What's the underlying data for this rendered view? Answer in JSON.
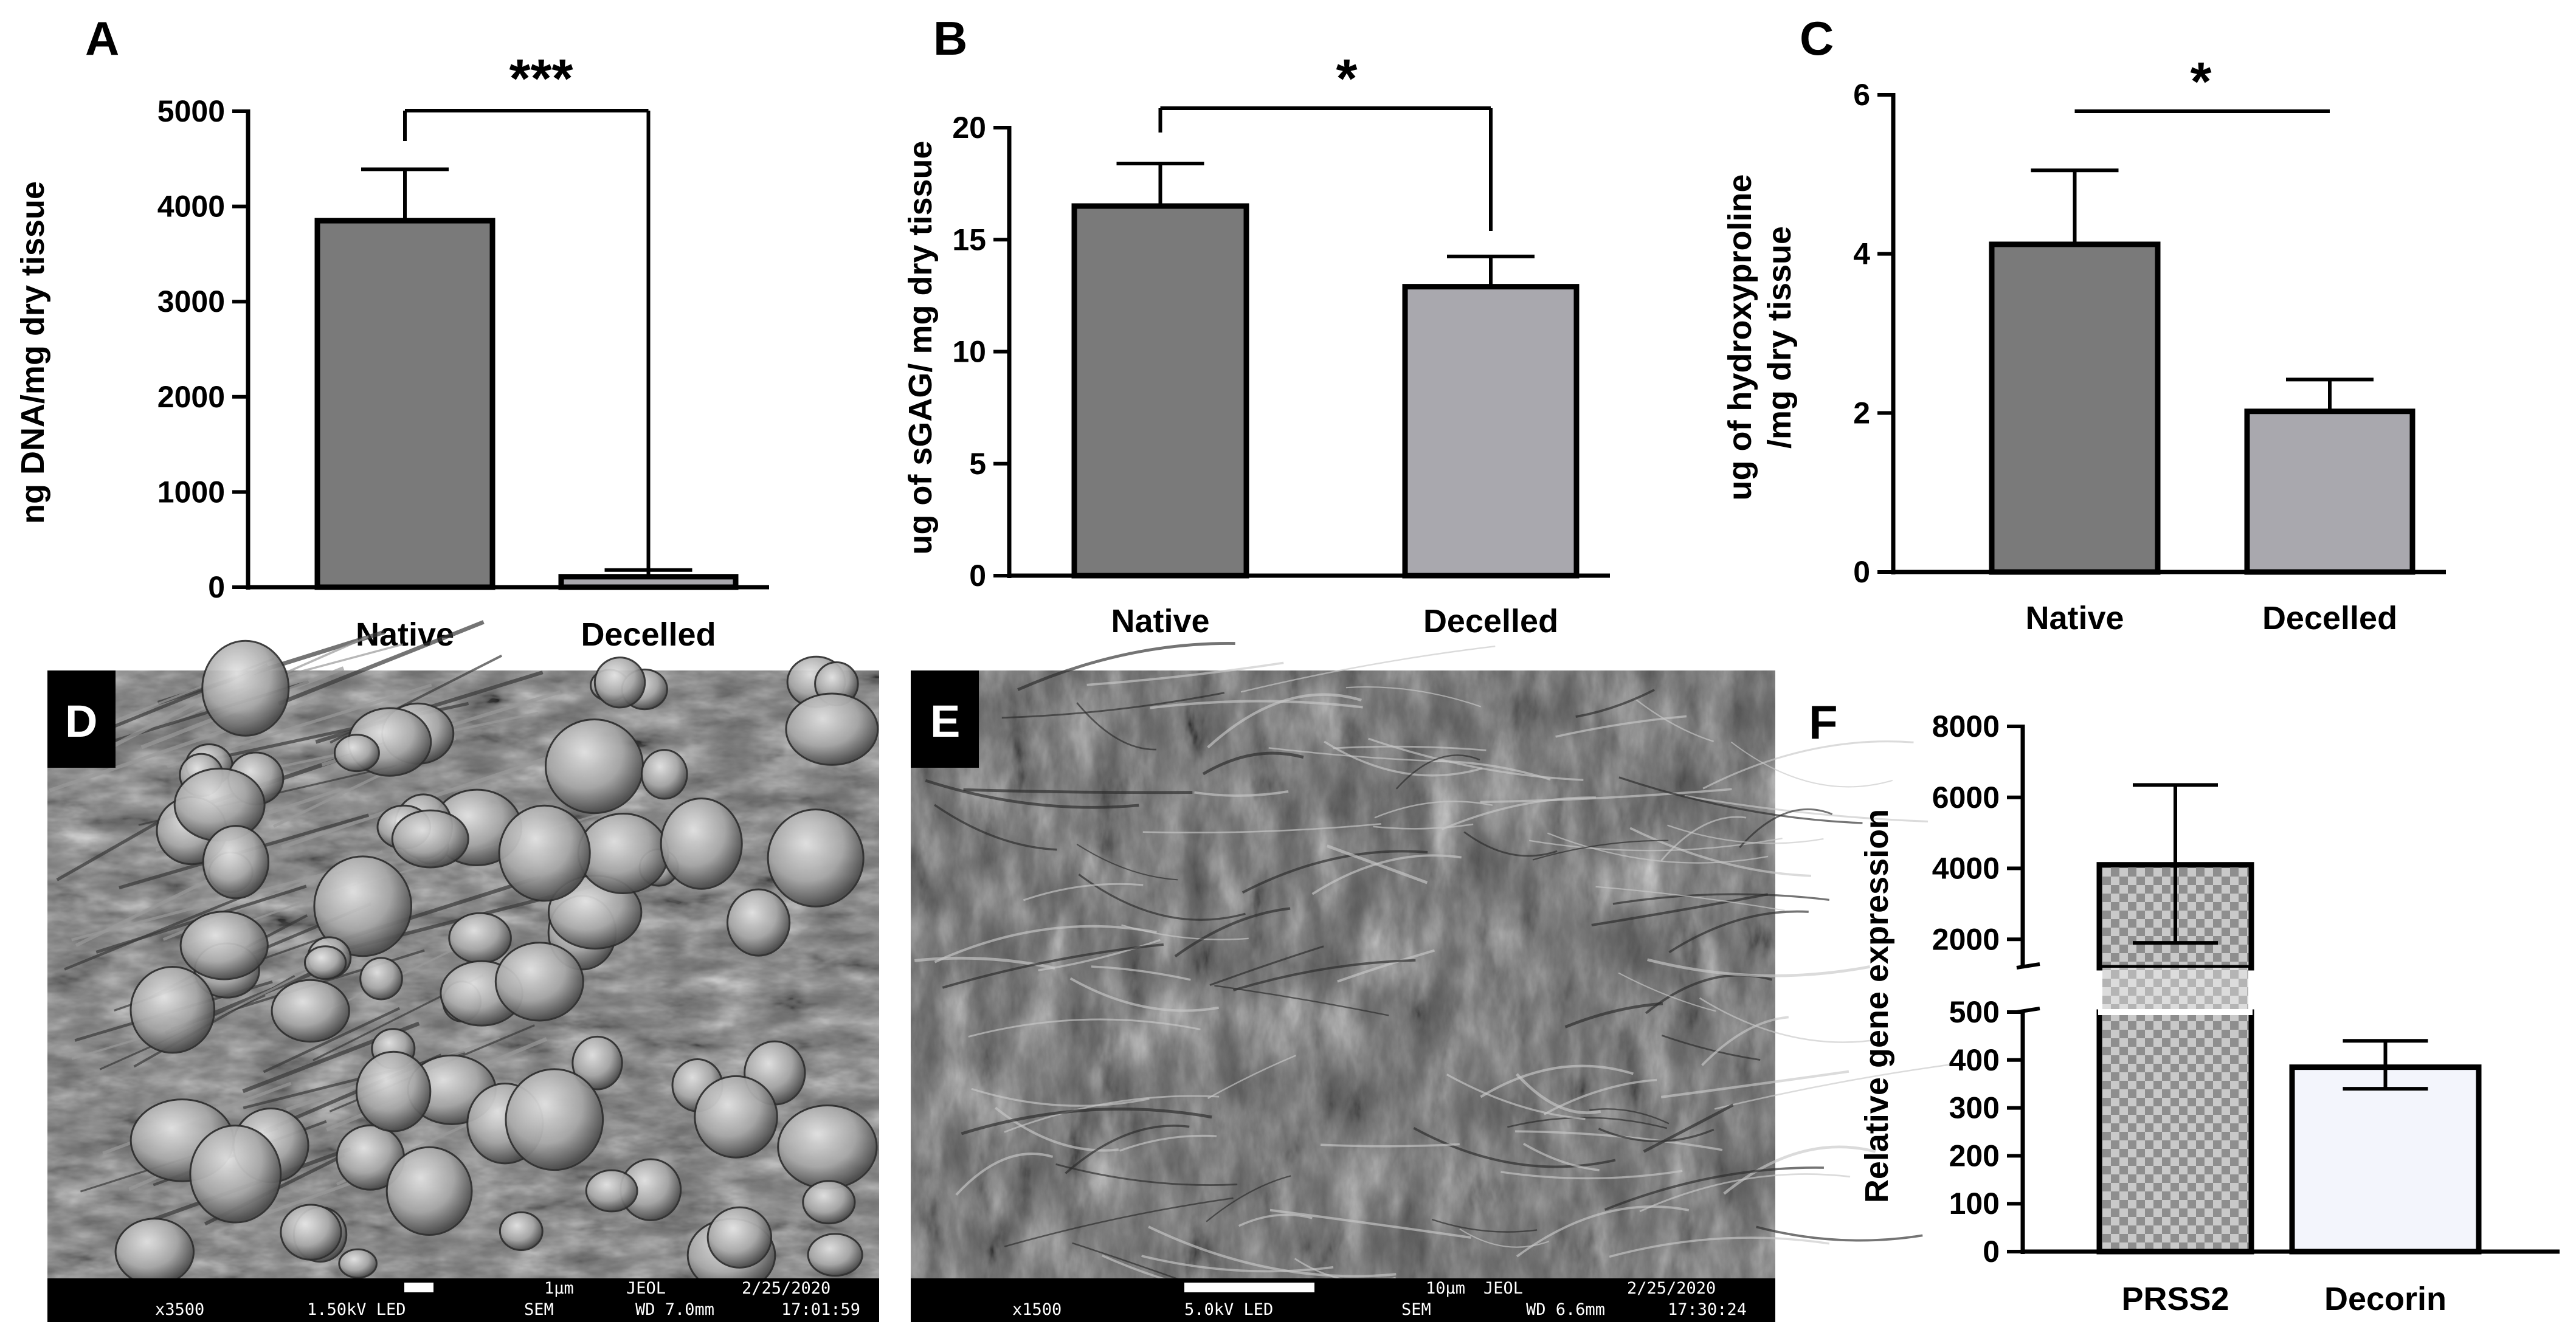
{
  "colors": {
    "native": "#7a7a7a",
    "decelled": "#a9a8ae",
    "prss2_check_light": "#c9c9c9",
    "prss2_check_dark": "#8e8e8e",
    "decorin": "#f3f5fc",
    "sem_bg": "#7c7c7c"
  },
  "chart_data": [
    {
      "id": "A",
      "panel_label": "A",
      "type": "bar",
      "categories": [
        "Native",
        "Decelled"
      ],
      "values": [
        3850,
        110
      ],
      "errors": [
        540,
        70
      ],
      "ylabel": "ng DNA/mg dry tissue",
      "ylim": [
        0,
        5000
      ],
      "yticks": [
        0,
        1000,
        2000,
        3000,
        4000,
        5000
      ],
      "yticklabels": [
        "0",
        "1000",
        "2000",
        "3000",
        "4000",
        "5000"
      ],
      "significance": "***",
      "grid": false
    },
    {
      "id": "B",
      "panel_label": "B",
      "type": "bar",
      "categories": [
        "Native",
        "Decelled"
      ],
      "values": [
        16.5,
        12.9
      ],
      "errors": [
        1.9,
        1.35
      ],
      "ylabel": "ug of sGAG/ mg dry  tissue",
      "ylim": [
        0,
        20
      ],
      "yticks": [
        0,
        5,
        10,
        15,
        20
      ],
      "yticklabels": [
        "0",
        "5",
        "10",
        "15",
        "20"
      ],
      "significance": "*",
      "grid": false
    },
    {
      "id": "C",
      "panel_label": "C",
      "type": "bar",
      "categories": [
        "Native",
        "Decelled"
      ],
      "values": [
        4.12,
        2.02
      ],
      "errors": [
        0.93,
        0.4
      ],
      "ylabel_lines": [
        "ug of hydroxyproline",
        "/mg dry  tissue"
      ],
      "ylim": [
        0,
        6
      ],
      "yticks": [
        0,
        2,
        4,
        6
      ],
      "yticklabels": [
        "0",
        "2",
        "4",
        "6"
      ],
      "significance": "*",
      "grid": false
    },
    {
      "id": "F",
      "panel_label": "F",
      "type": "bar",
      "categories": [
        "PRSS2",
        "Decorin"
      ],
      "values": [
        4100,
        385
      ],
      "error_lower": [
        1900,
        340
      ],
      "error_upper": [
        6350,
        440
      ],
      "ylabel": "Relative gene expression",
      "axis_break": true,
      "lower_segment": {
        "ylim": [
          0,
          500
        ],
        "yticks": [
          0,
          100,
          200,
          300,
          400,
          500
        ],
        "yticklabels": [
          "0",
          "100",
          "200",
          "300",
          "400",
          "500"
        ]
      },
      "upper_segment": {
        "ylim": [
          1200,
          8000
        ],
        "yticks": [
          2000,
          4000,
          6000,
          8000
        ],
        "yticklabels": [
          "2000",
          "4000",
          "6000",
          "8000"
        ]
      },
      "grid": false
    }
  ],
  "sem_images": [
    {
      "id": "D",
      "panel_label": "D",
      "magnification": "x3500",
      "voltage": "1.50kV LED",
      "scale": "1µm",
      "maker": "JEOL",
      "mode": "SEM",
      "wd": "WD 7.0mm",
      "date": "2/25/2020",
      "time": "17:01:59"
    },
    {
      "id": "E",
      "panel_label": "E",
      "magnification": "x1500",
      "voltage": "5.0kV  LED",
      "scale": "10µm",
      "maker": "JEOL",
      "mode": "SEM",
      "wd": "WD 6.6mm",
      "date": "2/25/2020",
      "time": "17:30:24"
    }
  ]
}
